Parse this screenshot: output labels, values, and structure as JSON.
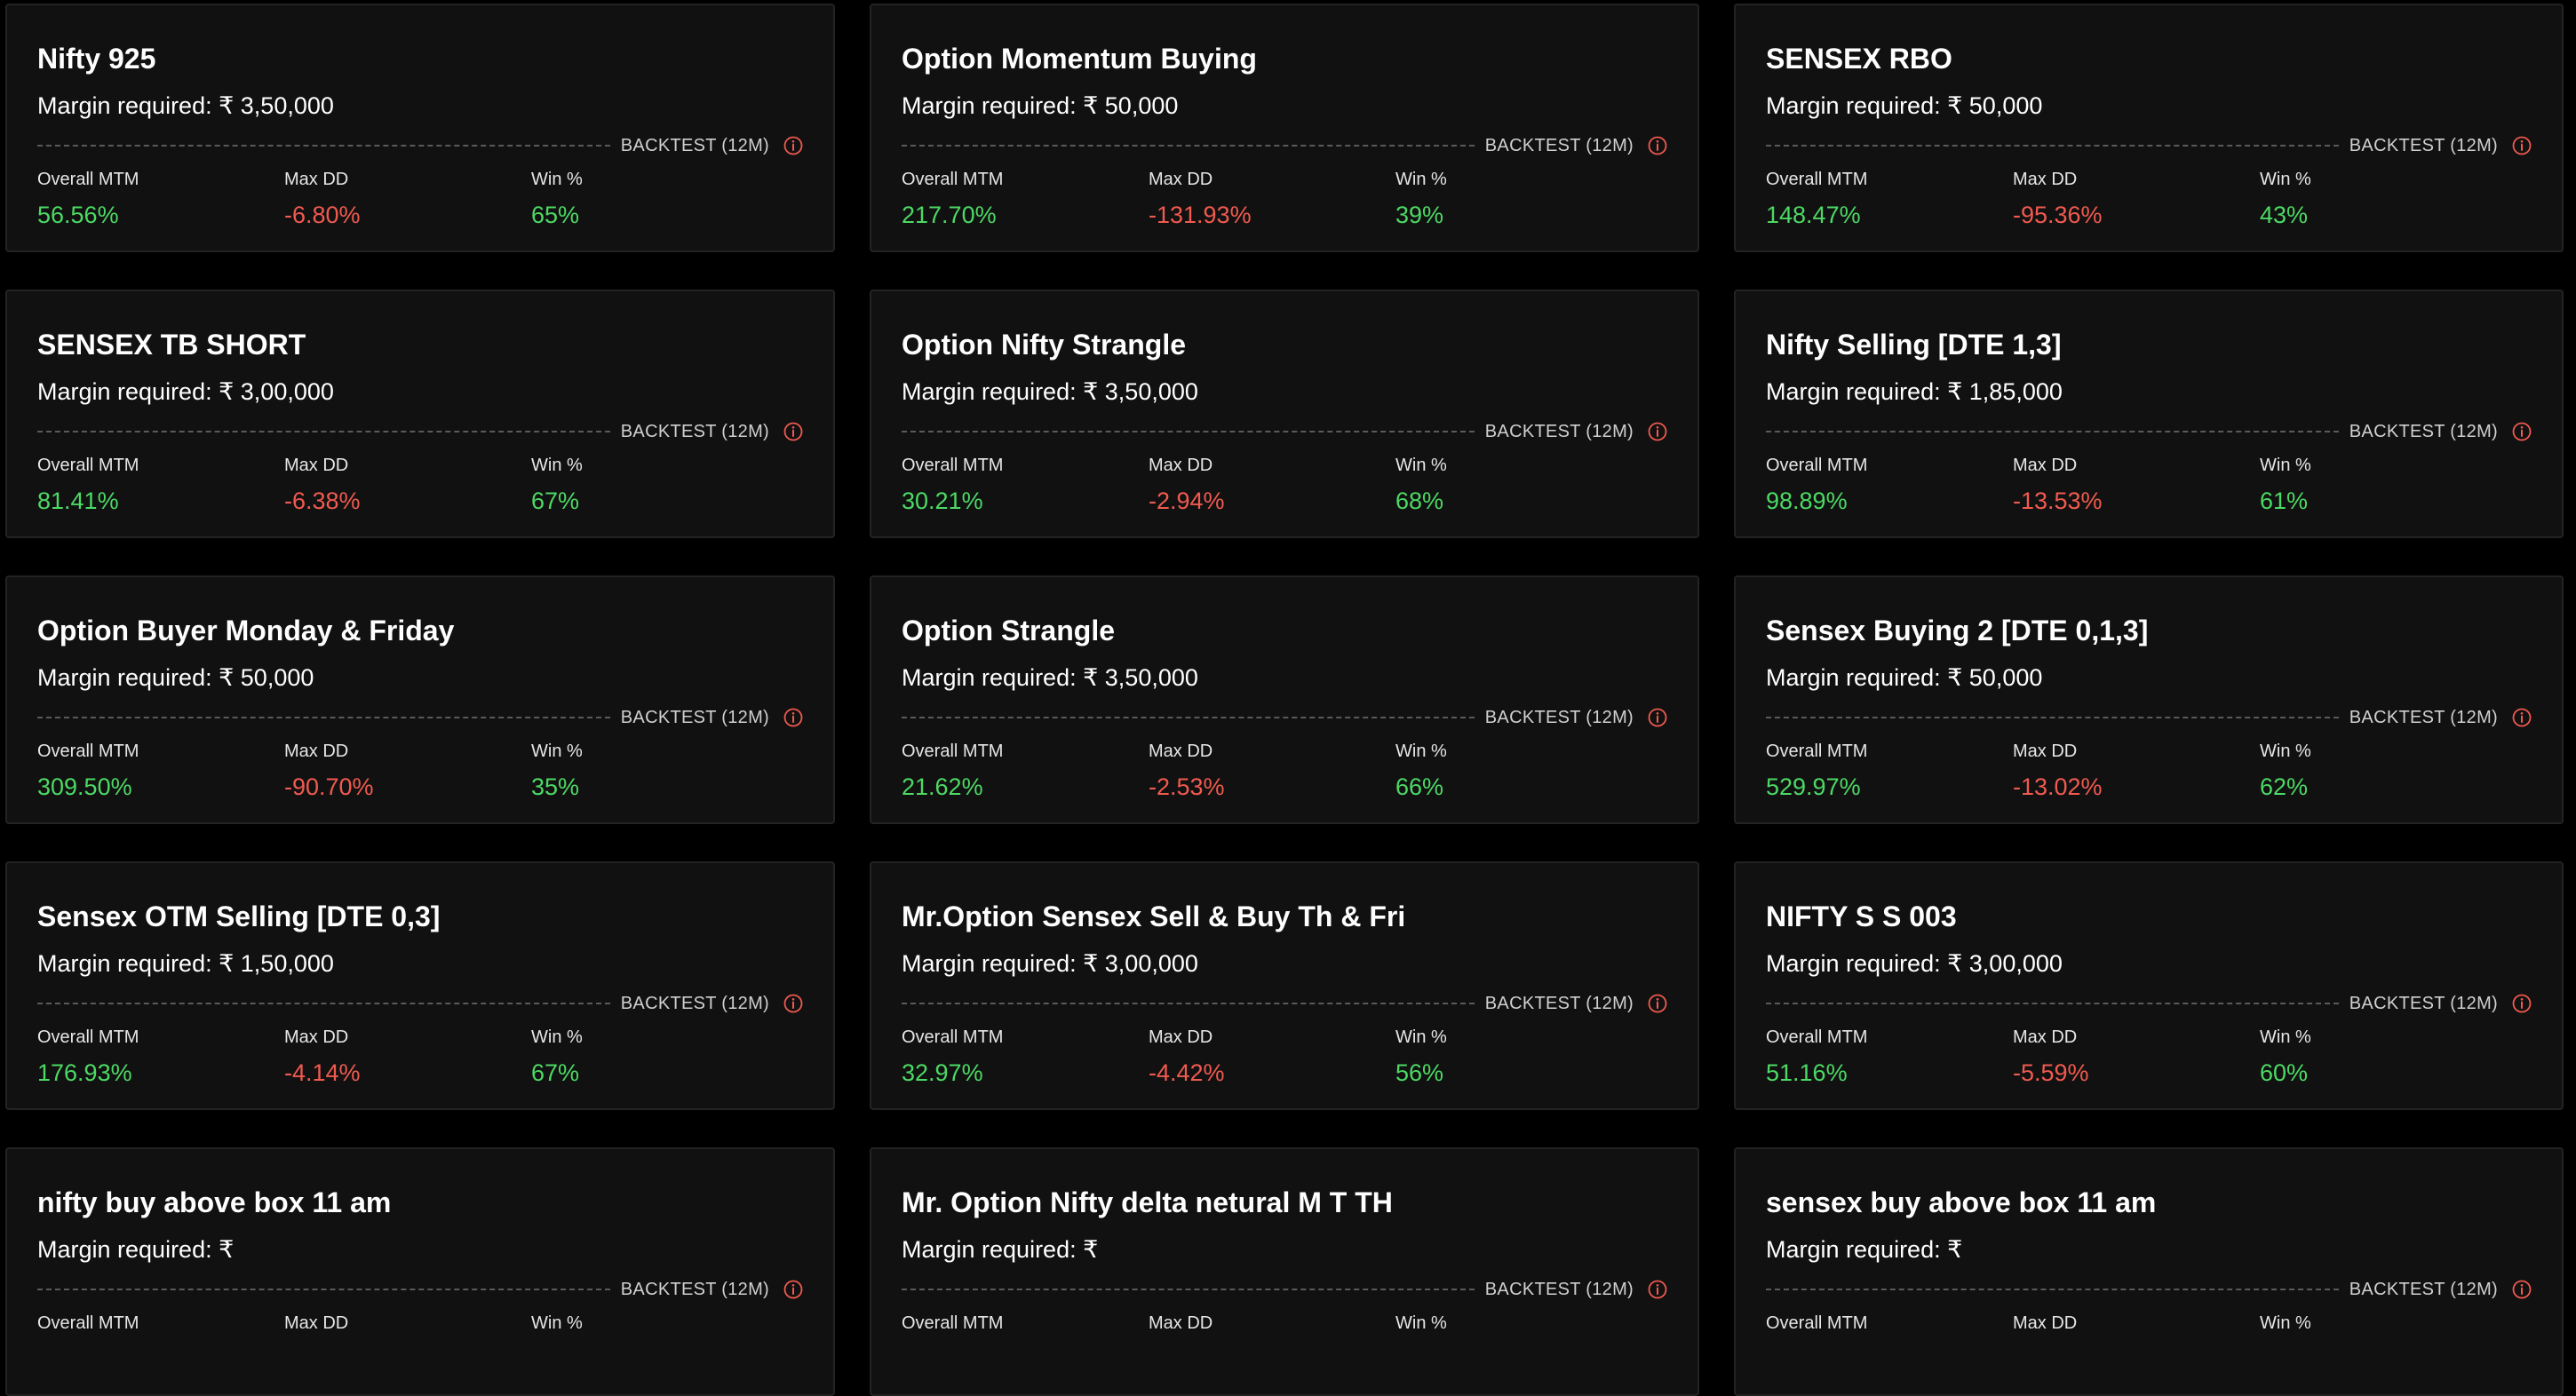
{
  "labels": {
    "margin_prefix": "Margin required: ₹ ",
    "backtest": "BACKTEST (12M)",
    "overall_mtm": "Overall MTM",
    "max_dd": "Max DD",
    "win_pct": "Win %"
  },
  "colors": {
    "positive": "#4cd964",
    "negative": "#f05a4f",
    "info_icon": "#f05a4f"
  },
  "strategies": [
    {
      "name": "Nifty 925",
      "margin": "3,50,000",
      "overall_mtm": "56.56%",
      "max_dd": "-6.80%",
      "win": "65%"
    },
    {
      "name": "Option Momentum Buying",
      "margin": "50,000",
      "overall_mtm": "217.70%",
      "max_dd": "-131.93%",
      "win": "39%"
    },
    {
      "name": "SENSEX RBO",
      "margin": "50,000",
      "overall_mtm": "148.47%",
      "max_dd": "-95.36%",
      "win": "43%"
    },
    {
      "name": "SENSEX TB SHORT",
      "margin": "3,00,000",
      "overall_mtm": "81.41%",
      "max_dd": "-6.38%",
      "win": "67%"
    },
    {
      "name": "Option Nifty Strangle",
      "margin": "3,50,000",
      "overall_mtm": "30.21%",
      "max_dd": "-2.94%",
      "win": "68%"
    },
    {
      "name": "Nifty Selling [DTE 1,3]",
      "margin": "1,85,000",
      "overall_mtm": "98.89%",
      "max_dd": "-13.53%",
      "win": "61%"
    },
    {
      "name": "Option Buyer Monday & Friday",
      "margin": "50,000",
      "overall_mtm": "309.50%",
      "max_dd": "-90.70%",
      "win": "35%"
    },
    {
      "name": "Option Strangle",
      "margin": "3,50,000",
      "overall_mtm": "21.62%",
      "max_dd": "-2.53%",
      "win": "66%"
    },
    {
      "name": "Sensex Buying 2 [DTE 0,1,3]",
      "margin": "50,000",
      "overall_mtm": "529.97%",
      "max_dd": "-13.02%",
      "win": "62%"
    },
    {
      "name": "Sensex OTM Selling [DTE 0,3]",
      "margin": "1,50,000",
      "overall_mtm": "176.93%",
      "max_dd": "-4.14%",
      "win": "67%"
    },
    {
      "name": "Mr.Option Sensex Sell & Buy Th & Fri",
      "margin": "3,00,000",
      "overall_mtm": "32.97%",
      "max_dd": "-4.42%",
      "win": "56%"
    },
    {
      "name": "NIFTY S S 003",
      "margin": "3,00,000",
      "overall_mtm": "51.16%",
      "max_dd": "-5.59%",
      "win": "60%"
    },
    {
      "name": "nifty buy above box 11 am",
      "margin": "",
      "overall_mtm": "",
      "max_dd": "",
      "win": ""
    },
    {
      "name": "Mr. Option Nifty delta netural M T TH",
      "margin": "",
      "overall_mtm": "",
      "max_dd": "",
      "win": ""
    },
    {
      "name": "sensex buy above box 11 am",
      "margin": "",
      "overall_mtm": "",
      "max_dd": "",
      "win": ""
    }
  ]
}
